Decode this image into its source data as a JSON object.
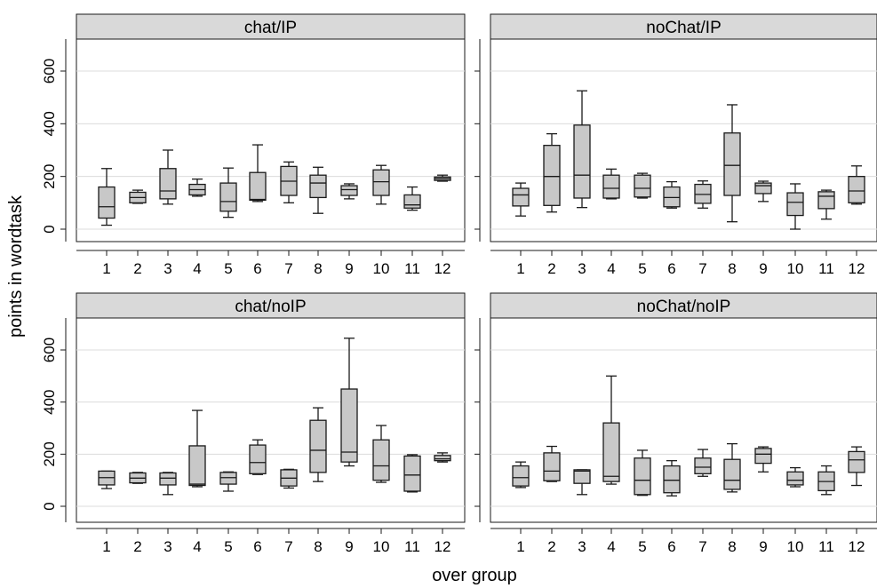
{
  "chart_data": {
    "type": "boxplot",
    "ylabel": "points in wordtask",
    "xlabel": "over group",
    "ylim": [
      -40,
      720
    ],
    "yticks": [
      0,
      200,
      400,
      600
    ],
    "categories": [
      "1",
      "2",
      "3",
      "4",
      "5",
      "6",
      "7",
      "8",
      "9",
      "10",
      "11",
      "12"
    ],
    "grid": "horizontal",
    "box_fill": "#c8c8c8",
    "panels": [
      {
        "title": "chat/IP",
        "boxes": [
          {
            "min": 15,
            "q1": 42,
            "median": 85,
            "q3": 160,
            "max": 230
          },
          {
            "min": 98,
            "q1": 100,
            "median": 120,
            "q3": 140,
            "max": 148
          },
          {
            "min": 95,
            "q1": 115,
            "median": 145,
            "q3": 230,
            "max": 300
          },
          {
            "min": 125,
            "q1": 130,
            "median": 150,
            "q3": 170,
            "max": 190
          },
          {
            "min": 45,
            "q1": 68,
            "median": 105,
            "q3": 175,
            "max": 232
          },
          {
            "min": 105,
            "q1": 110,
            "median": 113,
            "q3": 215,
            "max": 320
          },
          {
            "min": 100,
            "q1": 128,
            "median": 182,
            "q3": 238,
            "max": 255
          },
          {
            "min": 60,
            "q1": 120,
            "median": 175,
            "q3": 205,
            "max": 235
          },
          {
            "min": 115,
            "q1": 128,
            "median": 150,
            "q3": 165,
            "max": 172
          },
          {
            "min": 95,
            "q1": 128,
            "median": 180,
            "q3": 225,
            "max": 242
          },
          {
            "min": 72,
            "q1": 80,
            "median": 92,
            "q3": 130,
            "max": 160
          },
          {
            "min": 182,
            "q1": 185,
            "median": 192,
            "q3": 198,
            "max": 205
          }
        ]
      },
      {
        "title": "noChat/IP",
        "boxes": [
          {
            "min": 50,
            "q1": 88,
            "median": 130,
            "q3": 155,
            "max": 175
          },
          {
            "min": 65,
            "q1": 90,
            "median": 200,
            "q3": 318,
            "max": 362
          },
          {
            "min": 82,
            "q1": 118,
            "median": 205,
            "q3": 395,
            "max": 525
          },
          {
            "min": 115,
            "q1": 118,
            "median": 155,
            "q3": 205,
            "max": 228
          },
          {
            "min": 118,
            "q1": 122,
            "median": 155,
            "q3": 205,
            "max": 212
          },
          {
            "min": 80,
            "q1": 85,
            "median": 120,
            "q3": 160,
            "max": 180
          },
          {
            "min": 80,
            "q1": 98,
            "median": 132,
            "q3": 170,
            "max": 183
          },
          {
            "min": 28,
            "q1": 128,
            "median": 242,
            "q3": 365,
            "max": 472
          },
          {
            "min": 105,
            "q1": 135,
            "median": 165,
            "q3": 175,
            "max": 182
          },
          {
            "min": 0,
            "q1": 52,
            "median": 102,
            "q3": 138,
            "max": 172
          },
          {
            "min": 38,
            "q1": 78,
            "median": 125,
            "q3": 142,
            "max": 148
          },
          {
            "min": 95,
            "q1": 100,
            "median": 145,
            "q3": 200,
            "max": 240
          }
        ]
      },
      {
        "title": "chat/noIP",
        "boxes": [
          {
            "min": 68,
            "q1": 82,
            "median": 110,
            "q3": 135,
            "max": 135
          },
          {
            "min": 88,
            "q1": 90,
            "median": 108,
            "q3": 128,
            "max": 130
          },
          {
            "min": 45,
            "q1": 82,
            "median": 108,
            "q3": 128,
            "max": 130
          },
          {
            "min": 75,
            "q1": 80,
            "median": 85,
            "q3": 232,
            "max": 368
          },
          {
            "min": 58,
            "q1": 85,
            "median": 110,
            "q3": 130,
            "max": 132
          },
          {
            "min": 122,
            "q1": 125,
            "median": 168,
            "q3": 235,
            "max": 255
          },
          {
            "min": 70,
            "q1": 78,
            "median": 108,
            "q3": 140,
            "max": 142
          },
          {
            "min": 95,
            "q1": 130,
            "median": 215,
            "q3": 330,
            "max": 378
          },
          {
            "min": 155,
            "q1": 170,
            "median": 208,
            "q3": 450,
            "max": 645
          },
          {
            "min": 92,
            "q1": 100,
            "median": 155,
            "q3": 255,
            "max": 310
          },
          {
            "min": 55,
            "q1": 58,
            "median": 120,
            "q3": 193,
            "max": 198
          },
          {
            "min": 170,
            "q1": 175,
            "median": 182,
            "q3": 195,
            "max": 205
          }
        ]
      },
      {
        "title": "noChat/noIP",
        "boxes": [
          {
            "min": 72,
            "q1": 78,
            "median": 110,
            "q3": 155,
            "max": 170
          },
          {
            "min": 95,
            "q1": 98,
            "median": 135,
            "q3": 205,
            "max": 230
          },
          {
            "min": 45,
            "q1": 88,
            "median": 135,
            "q3": 140,
            "max": 140
          },
          {
            "min": 85,
            "q1": 95,
            "median": 115,
            "q3": 320,
            "max": 500
          },
          {
            "min": 42,
            "q1": 45,
            "median": 100,
            "q3": 185,
            "max": 215
          },
          {
            "min": 40,
            "q1": 52,
            "median": 100,
            "q3": 155,
            "max": 175
          },
          {
            "min": 115,
            "q1": 125,
            "median": 150,
            "q3": 185,
            "max": 218
          },
          {
            "min": 55,
            "q1": 65,
            "median": 100,
            "q3": 180,
            "max": 240
          },
          {
            "min": 132,
            "q1": 165,
            "median": 200,
            "q3": 222,
            "max": 228
          },
          {
            "min": 75,
            "q1": 82,
            "median": 100,
            "q3": 132,
            "max": 148
          },
          {
            "min": 45,
            "q1": 60,
            "median": 95,
            "q3": 132,
            "max": 155
          },
          {
            "min": 80,
            "q1": 130,
            "median": 178,
            "q3": 210,
            "max": 228
          }
        ]
      }
    ]
  }
}
